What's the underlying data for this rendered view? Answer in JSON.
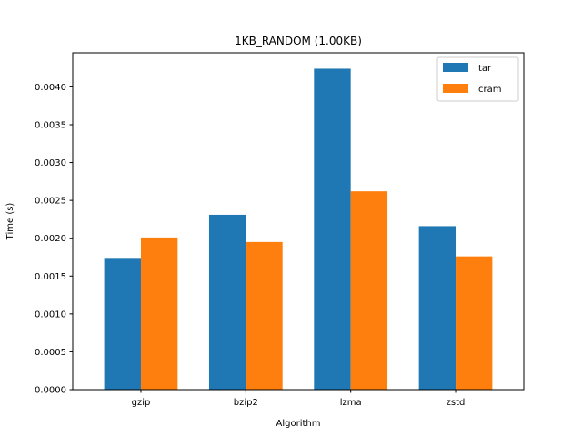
{
  "chart_data": {
    "type": "bar",
    "title": "1KB_RANDOM (1.00KB)",
    "xlabel": "Algorithm",
    "ylabel": "Time (s)",
    "categories": [
      "gzip",
      "bzip2",
      "lzma",
      "zstd"
    ],
    "series": [
      {
        "name": "tar",
        "color": "#1f77b4",
        "values": [
          0.00174,
          0.00231,
          0.00424,
          0.00216
        ]
      },
      {
        "name": "cram",
        "color": "#ff7f0e",
        "values": [
          0.00201,
          0.00195,
          0.00262,
          0.00176
        ]
      }
    ],
    "ylim": [
      0,
      0.00445
    ],
    "yticks": [
      "0.0000",
      "0.0005",
      "0.0010",
      "0.0015",
      "0.0020",
      "0.0025",
      "0.0030",
      "0.0035",
      "0.0040"
    ],
    "grid": false,
    "legend_position": "top-right"
  }
}
